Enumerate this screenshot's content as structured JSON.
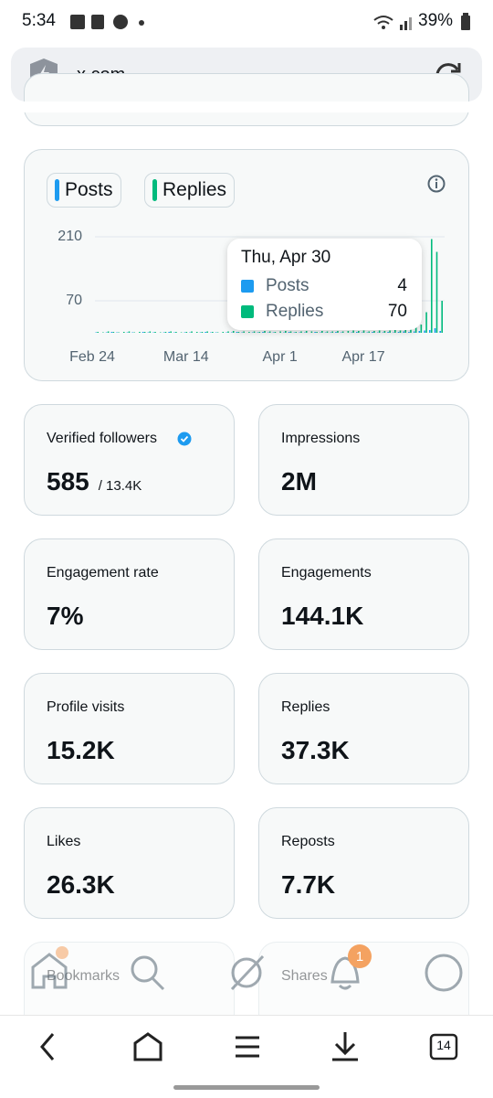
{
  "status_bar": {
    "time": "5:34",
    "battery": "39%"
  },
  "browser": {
    "url": "x.com",
    "tab_count": "14"
  },
  "chart_data": {
    "type": "bar",
    "categories": [
      "Feb 24",
      null,
      null,
      null,
      null,
      null,
      null,
      null,
      null,
      null,
      null,
      null,
      null,
      null,
      null,
      null,
      null,
      null,
      "Mar 14",
      null,
      null,
      null,
      null,
      null,
      null,
      null,
      null,
      null,
      null,
      null,
      null,
      null,
      null,
      null,
      null,
      null,
      "Apr 1",
      null,
      null,
      null,
      null,
      null,
      null,
      null,
      null,
      null,
      null,
      null,
      null,
      null,
      null,
      null,
      "Apr 17",
      null,
      null,
      null,
      null,
      null,
      null,
      null,
      null,
      null,
      null,
      null,
      null,
      null,
      null
    ],
    "series": [
      {
        "name": "Posts",
        "color": "#1d9bf0",
        "values": [
          1,
          0,
          1,
          2,
          1,
          0,
          1,
          1,
          0,
          2,
          1,
          1,
          0,
          1,
          2,
          1,
          0,
          1,
          1,
          0,
          1,
          2,
          1,
          1,
          0,
          1,
          1,
          2,
          1,
          0,
          1,
          1,
          2,
          1,
          1,
          0,
          1,
          2,
          1,
          1,
          1,
          0,
          2,
          1,
          1,
          1,
          2,
          1,
          0,
          1,
          2,
          1,
          1,
          2,
          1,
          1,
          2,
          1,
          2,
          3,
          2,
          3,
          4,
          5,
          6,
          10,
          4
        ]
      },
      {
        "name": "Replies",
        "color": "#00ba7c",
        "values": [
          2,
          1,
          3,
          2,
          1,
          2,
          3,
          1,
          2,
          2,
          3,
          2,
          1,
          2,
          3,
          2,
          1,
          2,
          3,
          2,
          2,
          3,
          2,
          1,
          2,
          3,
          4,
          2,
          3,
          2,
          3,
          2,
          4,
          3,
          2,
          3,
          4,
          3,
          2,
          3,
          4,
          3,
          2,
          4,
          3,
          3,
          4,
          3,
          4,
          5,
          4,
          5,
          3,
          4,
          5,
          4,
          5,
          6,
          5,
          6,
          8,
          12,
          18,
          45,
          205,
          177,
          70
        ]
      }
    ],
    "ylim": [
      0,
      210
    ],
    "yticks": [
      70,
      210
    ],
    "grid": true,
    "tooltip_title": "Thu, Apr 30"
  },
  "stats": [
    {
      "label": "Verified followers",
      "value": "585",
      "sub": "/ 13.4K"
    },
    {
      "label": "Impressions",
      "value": "2M"
    },
    {
      "label": "Engagement rate",
      "value": "7%"
    },
    {
      "label": "Engagements",
      "value": "144.1K"
    },
    {
      "label": "Profile visits",
      "value": "15.2K"
    },
    {
      "label": "Replies",
      "value": "37.3K"
    },
    {
      "label": "Likes",
      "value": "26.3K"
    },
    {
      "label": "Reposts",
      "value": "7.7K"
    },
    {
      "label": "Bookmarks"
    },
    {
      "label": "Shares"
    }
  ],
  "notification_badge": "1"
}
